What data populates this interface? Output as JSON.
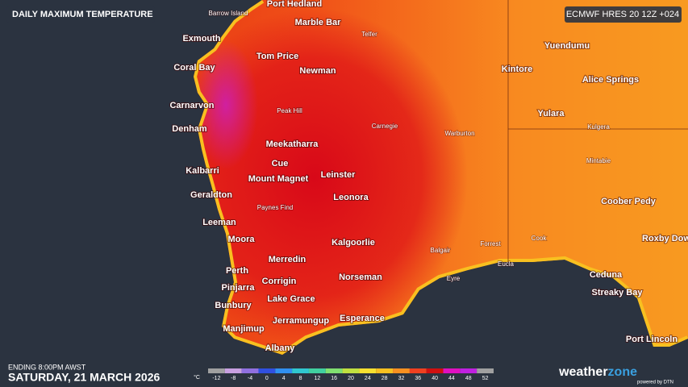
{
  "header": {
    "title": "DAILY MAXIMUM TEMPERATURE",
    "model": "ECMWF HRES 20 12Z +024"
  },
  "footer": {
    "ending": "ENDING 8:00PM AWST",
    "date": "SATURDAY, 21 MARCH 2026",
    "brand": [
      "weather",
      "zone"
    ],
    "powered": "powered by DTN"
  },
  "legend": {
    "unit": "°C",
    "ticks": [
      -12,
      -8,
      -4,
      0,
      4,
      8,
      12,
      16,
      20,
      24,
      28,
      32,
      36,
      40,
      44,
      48,
      52
    ],
    "colors": [
      "#a0a0a0",
      "#c8a0e0",
      "#9070e0",
      "#3050e0",
      "#3090f0",
      "#30c8d0",
      "#40d0a0",
      "#80e070",
      "#c0e040",
      "#f8e030",
      "#f8c020",
      "#f89020",
      "#f04020",
      "#d01010",
      "#e010c0",
      "#c020e0",
      "#a0a0a0"
    ]
  },
  "places": {
    "major": [
      "Port Hedland",
      "Marble Bar",
      "Exmouth",
      "Coral Bay",
      "Tom Price",
      "Newman",
      "Carnarvon",
      "Denham",
      "Meekatharra",
      "Cue",
      "Kalbarri",
      "Leinster",
      "Mount Magnet",
      "Geraldton",
      "Leonora",
      "Leeman",
      "Moora",
      "Kalgoorlie",
      "Merredin",
      "Perth",
      "Corrigin",
      "Norseman",
      "Pinjarra",
      "Lake Grace",
      "Bunbury",
      "Esperance",
      "Jerramungup",
      "Manjimup",
      "Albany",
      "Yuendumu",
      "Kintore",
      "Alice Springs",
      "Yulara",
      "Coober Pedy",
      "Roxby Dow",
      "Ceduna",
      "Streaky Bay",
      "Port Lincoln"
    ],
    "minor": [
      "Barrow Island",
      "Telfer",
      "Peak Hill",
      "Carnegie",
      "Warburton",
      "Kulgera",
      "Mintabie",
      "Paynes Find",
      "Balgair",
      "Forrest",
      "Cook",
      "Eucla",
      "Eyre"
    ]
  }
}
